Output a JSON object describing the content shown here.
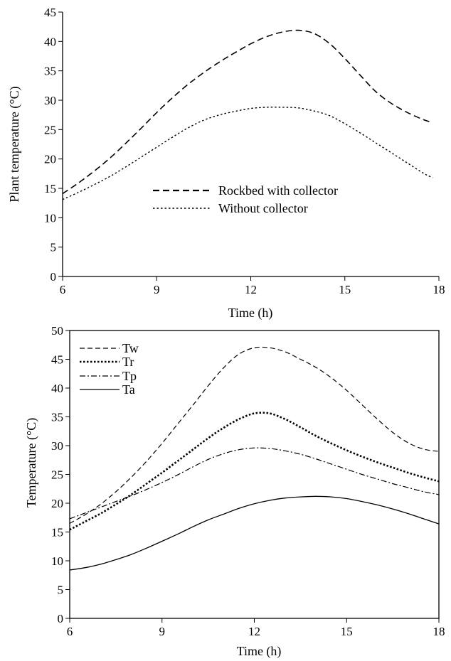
{
  "chart_data": [
    {
      "type": "line",
      "xlabel": "Time (h)",
      "ylabel": "Plant temperature (°C)",
      "xlim": [
        6,
        18
      ],
      "ylim": [
        0,
        45
      ],
      "xticks": [
        "6",
        "9",
        "12",
        "15",
        "18"
      ],
      "yticks": [
        "0",
        "5",
        "10",
        "15",
        "20",
        "25",
        "30",
        "35",
        "40",
        "45"
      ],
      "frame": "left-bottom axes only",
      "grid": false,
      "legend_position": "center",
      "series": [
        {
          "name": "Rockbed with collector",
          "line_style": "dashed",
          "color": "#000000",
          "x": [
            6,
            6.5,
            7,
            7.5,
            8,
            8.5,
            9,
            9.5,
            10,
            10.5,
            11,
            11.5,
            12,
            12.5,
            13,
            13.5,
            14,
            14.5,
            15,
            15.5,
            16,
            16.5,
            17,
            17.5,
            17.8
          ],
          "values": [
            14.1,
            15.9,
            17.9,
            20.1,
            22.6,
            25.2,
            27.9,
            30.4,
            32.7,
            34.7,
            36.5,
            38.1,
            39.6,
            40.8,
            41.6,
            41.9,
            41.4,
            39.7,
            37.1,
            34.2,
            31.4,
            29.4,
            27.9,
            26.7,
            26.2
          ]
        },
        {
          "name": "Without collector",
          "line_style": "dotted",
          "color": "#000000",
          "x": [
            6,
            6.5,
            7,
            7.5,
            8,
            8.5,
            9,
            9.5,
            10,
            10.5,
            11,
            11.5,
            12,
            12.5,
            13,
            13.5,
            14,
            14.5,
            15,
            15.5,
            16,
            16.5,
            17,
            17.5,
            17.8
          ],
          "values": [
            13.1,
            14.3,
            15.6,
            17.0,
            18.6,
            20.3,
            22.0,
            23.7,
            25.3,
            26.6,
            27.5,
            28.1,
            28.6,
            28.8,
            28.8,
            28.7,
            28.2,
            27.4,
            26.0,
            24.4,
            22.7,
            21.0,
            19.3,
            17.6,
            16.8
          ]
        }
      ]
    },
    {
      "type": "line",
      "xlabel": "Time (h)",
      "ylabel": "Temperature (°C)",
      "xlim": [
        6,
        18
      ],
      "ylim": [
        0,
        50
      ],
      "xticks": [
        "6",
        "9",
        "12",
        "15",
        "18"
      ],
      "yticks": [
        "0",
        "5",
        "10",
        "15",
        "20",
        "25",
        "30",
        "35",
        "40",
        "45",
        "50"
      ],
      "frame": "boxed",
      "grid": false,
      "legend_position": "top-left",
      "series": [
        {
          "name": "Tw",
          "line_style": "dashed",
          "color": "#000000",
          "x": [
            6,
            6.5,
            7,
            7.5,
            8,
            8.5,
            9,
            9.5,
            10,
            10.5,
            11,
            11.5,
            12,
            12.5,
            13,
            13.5,
            14,
            14.5,
            15,
            15.5,
            16,
            16.5,
            17,
            17.5,
            18
          ],
          "values": [
            16.5,
            18.0,
            19.8,
            22.0,
            24.5,
            27.3,
            30.4,
            33.7,
            37.0,
            40.4,
            43.5,
            45.9,
            47.0,
            47.0,
            46.3,
            45.0,
            43.6,
            41.8,
            39.6,
            37.1,
            34.6,
            32.3,
            30.5,
            29.4,
            29.0
          ]
        },
        {
          "name": "Tr",
          "line_style": "dotted",
          "color": "#000000",
          "x": [
            6,
            6.5,
            7,
            7.5,
            8,
            8.5,
            9,
            9.5,
            10,
            10.5,
            11,
            11.5,
            12,
            12.5,
            13,
            13.5,
            14,
            14.5,
            15,
            15.5,
            16,
            16.5,
            17,
            17.5,
            18
          ],
          "values": [
            15.4,
            16.8,
            18.2,
            19.8,
            21.5,
            23.4,
            25.3,
            27.3,
            29.3,
            31.3,
            33.1,
            34.6,
            35.6,
            35.6,
            34.6,
            33.2,
            31.7,
            30.4,
            29.2,
            28.1,
            27.1,
            26.2,
            25.3,
            24.5,
            23.8
          ]
        },
        {
          "name": "Tp",
          "line_style": "dash-dot",
          "color": "#000000",
          "x": [
            6,
            6.5,
            7,
            7.5,
            8,
            8.5,
            9,
            9.5,
            10,
            10.5,
            11,
            11.5,
            12,
            12.5,
            13,
            13.5,
            14,
            14.5,
            15,
            15.5,
            16,
            16.5,
            17,
            17.5,
            18
          ],
          "values": [
            17.3,
            18.3,
            19.3,
            20.3,
            21.3,
            22.4,
            23.6,
            24.9,
            26.3,
            27.6,
            28.6,
            29.3,
            29.6,
            29.5,
            29.1,
            28.5,
            27.7,
            26.8,
            25.9,
            25.0,
            24.2,
            23.4,
            22.7,
            22.0,
            21.5
          ]
        },
        {
          "name": "Ta",
          "line_style": "solid",
          "color": "#000000",
          "x": [
            6,
            6.5,
            7,
            7.5,
            8,
            8.5,
            9,
            9.5,
            10,
            10.5,
            11,
            11.5,
            12,
            12.5,
            13,
            13.5,
            14,
            14.5,
            15,
            15.5,
            16,
            16.5,
            17,
            17.5,
            18
          ],
          "values": [
            8.4,
            8.8,
            9.4,
            10.2,
            11.1,
            12.2,
            13.4,
            14.6,
            15.9,
            17.1,
            18.1,
            19.1,
            19.9,
            20.5,
            20.9,
            21.1,
            21.2,
            21.1,
            20.8,
            20.3,
            19.7,
            19.0,
            18.2,
            17.3,
            16.4
          ]
        }
      ]
    }
  ]
}
